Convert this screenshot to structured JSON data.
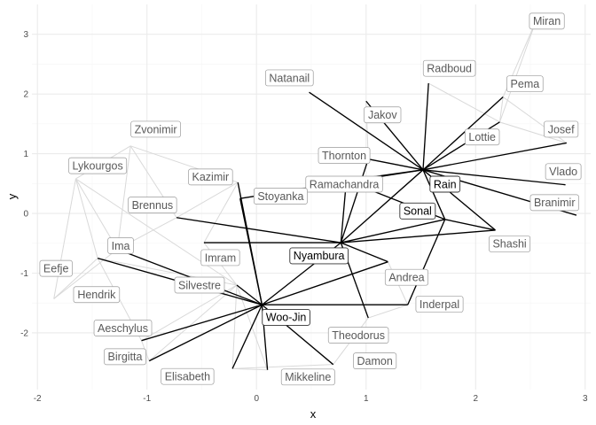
{
  "chart_data": {
    "type": "scatter",
    "subtype": "network-graph",
    "title": "",
    "xlabel": "x",
    "ylabel": "y",
    "xlim": [
      -2.05,
      3.05
    ],
    "ylim": [
      -2.95,
      3.5
    ],
    "xticks": [
      -2,
      -1,
      0,
      1,
      2,
      3
    ],
    "yticks": [
      -2,
      -1,
      0,
      1,
      2,
      3
    ],
    "grid": true,
    "colors": {
      "highlight_edge": "#000000",
      "muted_edge": "#d9d9d9",
      "grid_major": "#ebebeb",
      "grid_minor": "#f5f5f5",
      "label_border_hi": "#333333",
      "label_border_muted": "#9a9a9a",
      "label_text_hi": "#000000",
      "label_text_muted": "#595959"
    },
    "highlight_nodes": [
      {
        "name": "Rain",
        "x": 1.52,
        "y": 0.73
      },
      {
        "name": "Sonal",
        "x": 1.72,
        "y": -0.1
      },
      {
        "name": "Nyambura",
        "x": 0.77,
        "y": -0.49
      },
      {
        "name": "Woo-Jin",
        "x": 0.05,
        "y": -1.53
      }
    ],
    "nodes": [
      {
        "name": "Miran",
        "x": 2.55,
        "y": 3.22,
        "lx": 2.65,
        "ly": 3.22
      },
      {
        "name": "Radboud",
        "x": 1.57,
        "y": 2.18,
        "lx": 1.76,
        "ly": 2.43
      },
      {
        "name": "Pema",
        "x": 2.25,
        "y": 1.95,
        "lx": 2.45,
        "ly": 2.17
      },
      {
        "name": "Natanail",
        "x": 0.48,
        "y": 2.03,
        "lx": 0.3,
        "ly": 2.27
      },
      {
        "name": "Jakov",
        "x": 1.0,
        "y": 1.88,
        "lx": 1.15,
        "ly": 1.65
      },
      {
        "name": "Josef",
        "x": 2.83,
        "y": 1.18,
        "lx": 2.78,
        "ly": 1.41
      },
      {
        "name": "Lottie",
        "x": 2.22,
        "y": 1.53,
        "lx": 2.06,
        "ly": 1.28
      },
      {
        "name": "Zvonimir",
        "x": -1.15,
        "y": 1.13,
        "lx": -0.92,
        "ly": 1.41
      },
      {
        "name": "Thornton",
        "x": 1.02,
        "y": 0.91,
        "lx": 0.8,
        "ly": 0.97
      },
      {
        "name": "Lykourgos",
        "x": -1.65,
        "y": 0.58,
        "lx": -1.45,
        "ly": 0.8
      },
      {
        "name": "Vlado",
        "x": 2.82,
        "y": 0.48,
        "lx": 2.8,
        "ly": 0.7
      },
      {
        "name": "Kazimir",
        "x": -0.17,
        "y": 0.52,
        "lx": -0.42,
        "ly": 0.61
      },
      {
        "name": "Ramachandra",
        "x": 0.82,
        "y": 0.55,
        "lx": 0.8,
        "ly": 0.49
      },
      {
        "name": "Stoyanka",
        "x": -0.15,
        "y": 0.25,
        "lx": 0.22,
        "ly": 0.29
      },
      {
        "name": "Branimir",
        "x": 2.92,
        "y": -0.03,
        "lx": 2.72,
        "ly": 0.18
      },
      {
        "name": "Brennus",
        "x": -0.73,
        "y": -0.07,
        "lx": -0.95,
        "ly": 0.14
      },
      {
        "name": "Shashi",
        "x": 2.18,
        "y": -0.28,
        "lx": 2.31,
        "ly": -0.51
      },
      {
        "name": "Ima",
        "x": -1.27,
        "y": -0.6,
        "lx": -1.24,
        "ly": -0.54
      },
      {
        "name": "Imram",
        "x": -0.48,
        "y": -0.49,
        "lx": -0.33,
        "ly": -0.74
      },
      {
        "name": "Eefje",
        "x": -1.85,
        "y": -1.43,
        "lx": -1.83,
        "ly": -0.92
      },
      {
        "name": "Andrea",
        "x": 1.2,
        "y": -0.81,
        "lx": 1.37,
        "ly": -1.07
      },
      {
        "name": "Silvestre",
        "x": -0.18,
        "y": -1.2,
        "lx": -0.52,
        "ly": -1.2
      },
      {
        "name": "Hendrik",
        "x": -1.45,
        "y": -0.75,
        "lx": -1.46,
        "ly": -1.36
      },
      {
        "name": "Inderpal",
        "x": 1.38,
        "y": -1.53,
        "lx": 1.67,
        "ly": -1.52
      },
      {
        "name": "Aeschylus",
        "x": -1.05,
        "y": -2.13,
        "lx": -1.22,
        "ly": -1.92
      },
      {
        "name": "Theodorus",
        "x": 1.02,
        "y": -1.75,
        "lx": 0.93,
        "ly": -2.04
      },
      {
        "name": "Birgitta",
        "x": -0.98,
        "y": -2.47,
        "lx": -1.2,
        "ly": -2.4
      },
      {
        "name": "Damon",
        "x": 0.7,
        "y": -2.53,
        "lx": 1.08,
        "ly": -2.47
      },
      {
        "name": "Elisabeth",
        "x": -0.22,
        "y": -2.6,
        "lx": -0.63,
        "ly": -2.73
      },
      {
        "name": "Mikkeline",
        "x": 0.1,
        "y": -2.62,
        "lx": 0.47,
        "ly": -2.74
      }
    ],
    "highlight_labels": [
      {
        "name": "Rain",
        "lx": 1.72,
        "ly": 0.49
      },
      {
        "name": "Sonal",
        "lx": 1.47,
        "ly": 0.04
      },
      {
        "name": "Nyambura",
        "lx": 0.57,
        "ly": -0.71
      },
      {
        "name": "Woo-Jin",
        "lx": 0.27,
        "ly": -1.74
      }
    ],
    "edges": [
      [
        "Rain",
        "Radboud"
      ],
      [
        "Rain",
        "Pema"
      ],
      [
        "Rain",
        "Natanail"
      ],
      [
        "Rain",
        "Jakov"
      ],
      [
        "Rain",
        "Josef"
      ],
      [
        "Rain",
        "Lottie"
      ],
      [
        "Rain",
        "Thornton"
      ],
      [
        "Rain",
        "Vlado"
      ],
      [
        "Rain",
        "Ramachandra"
      ],
      [
        "Rain",
        "Branimir"
      ],
      [
        "Rain",
        "Shashi"
      ],
      [
        "Rain",
        "Nyambura"
      ],
      [
        "Rain",
        "Sonal"
      ],
      [
        "Rain",
        "Stoyanka"
      ],
      [
        "Sonal",
        "Ramachandra"
      ],
      [
        "Sonal",
        "Shashi"
      ],
      [
        "Sonal",
        "Nyambura"
      ],
      [
        "Sonal",
        "Inderpal"
      ],
      [
        "Nyambura",
        "Thornton"
      ],
      [
        "Nyambura",
        "Ramachandra"
      ],
      [
        "Nyambura",
        "Brennus"
      ],
      [
        "Nyambura",
        "Imram"
      ],
      [
        "Nyambura",
        "Andrea"
      ],
      [
        "Nyambura",
        "Theodorus"
      ],
      [
        "Nyambura",
        "Shashi"
      ],
      [
        "Nyambura",
        "Woo-Jin"
      ],
      [
        "Woo-Jin",
        "Kazimir"
      ],
      [
        "Woo-Jin",
        "Stoyanka"
      ],
      [
        "Woo-Jin",
        "Ima"
      ],
      [
        "Woo-Jin",
        "Hendrik"
      ],
      [
        "Woo-Jin",
        "Silvestre"
      ],
      [
        "Woo-Jin",
        "Aeschylus"
      ],
      [
        "Woo-Jin",
        "Birgitta"
      ],
      [
        "Woo-Jin",
        "Elisabeth"
      ],
      [
        "Woo-Jin",
        "Mikkeline"
      ],
      [
        "Woo-Jin",
        "Damon"
      ],
      [
        "Woo-Jin",
        "Inderpal"
      ],
      [
        "Woo-Jin",
        "Andrea"
      ]
    ],
    "muted_edges": [
      [
        "Miran",
        "Pema"
      ],
      [
        "Miran",
        "Lottie"
      ],
      [
        "Pema",
        "Lottie"
      ],
      [
        "Radboud",
        "Lottie"
      ],
      [
        "Josef",
        "Lottie"
      ],
      [
        "Josef",
        "Pema"
      ],
      [
        "Zvonimir",
        "Lykourgos"
      ],
      [
        "Zvonimir",
        "Brennus"
      ],
      [
        "Zvonimir",
        "Ima"
      ],
      [
        "Zvonimir",
        "Kazimir"
      ],
      [
        "Lykourgos",
        "Ima"
      ],
      [
        "Lykourgos",
        "Hendrik"
      ],
      [
        "Lykourgos",
        "Eefje"
      ],
      [
        "Lykourgos",
        "Silvestre"
      ],
      [
        "Ima",
        "Brennus"
      ],
      [
        "Ima",
        "Eefje"
      ],
      [
        "Kazimir",
        "Stoyanka"
      ],
      [
        "Kazimir",
        "Imram"
      ],
      [
        "Kazimir",
        "Brennus"
      ],
      [
        "Silvestre",
        "Hendrik"
      ],
      [
        "Silvestre",
        "Imram"
      ],
      [
        "Silvestre",
        "Elisabeth"
      ],
      [
        "Silvestre",
        "Birgitta"
      ],
      [
        "Silvestre",
        "Mikkeline"
      ],
      [
        "Silvestre",
        "Aeschylus"
      ],
      [
        "Hendrik",
        "Eefje"
      ],
      [
        "Hendrik",
        "Aeschylus"
      ],
      [
        "Elisabeth",
        "Damon"
      ],
      [
        "Elisabeth",
        "Mikkeline"
      ],
      [
        "Birgitta",
        "Aeschylus"
      ],
      [
        "Theodorus",
        "Inderpal"
      ],
      [
        "Theodorus",
        "Damon"
      ],
      [
        "Andrea",
        "Inderpal"
      ],
      [
        "Thornton",
        "Jakov"
      ],
      [
        "Stoyanka",
        "Ramachandra"
      ]
    ]
  }
}
